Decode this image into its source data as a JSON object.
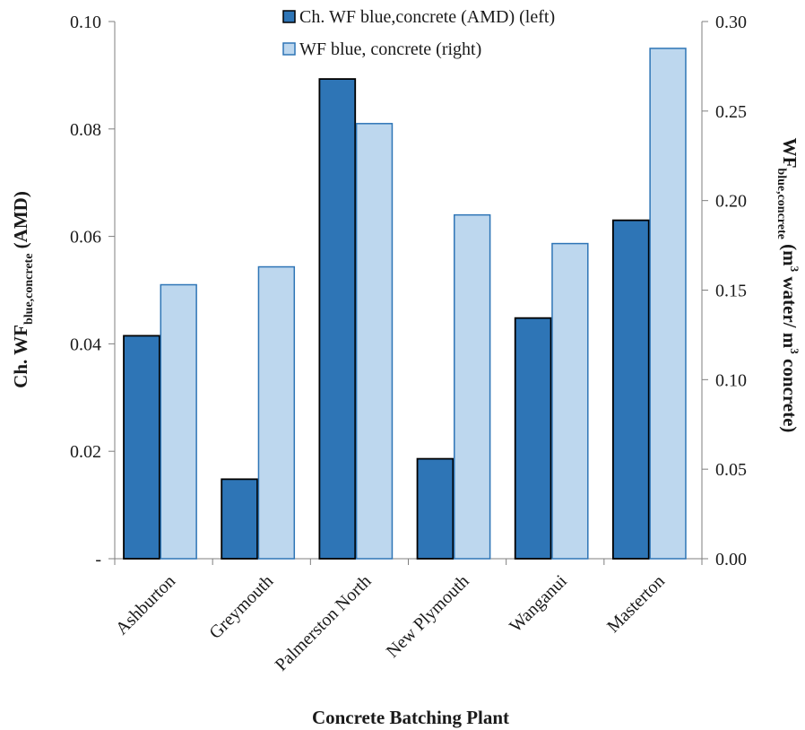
{
  "chart_data": {
    "type": "bar",
    "categories": [
      "Ashburton",
      "Greymouth",
      "Palmerston North",
      "New Plymouth",
      "Wanganui",
      "Masterton"
    ],
    "series": [
      {
        "name": "Ch. WF blue,concrete (AMD) (left)",
        "axis": "left",
        "color": "#2e75b6",
        "values": [
          0.0415,
          0.0148,
          0.0893,
          0.0186,
          0.0448,
          0.063
        ]
      },
      {
        "name": "WF blue, concrete (right)",
        "axis": "right",
        "color": "#bdd7ee",
        "values": [
          0.153,
          0.163,
          0.243,
          0.192,
          0.176,
          0.285
        ]
      }
    ],
    "left_axis": {
      "label_main": "Ch. WF",
      "label_sub": "blue,concrete",
      "label_tail": " (AMD)",
      "ylim": [
        0,
        0.1
      ],
      "ticks": [
        0,
        0.02,
        0.04,
        0.06,
        0.08,
        0.1
      ],
      "tick_labels": [
        "-",
        "0.02",
        "0.04",
        "0.06",
        "0.08",
        "0.10"
      ]
    },
    "right_axis": {
      "label_main": "WF",
      "label_sub": "blue,concrete",
      "label_tail_1": " (m",
      "label_sup_1": "3",
      "label_tail_2": " water/ m",
      "label_sup_2": "3",
      "label_tail_3": " concrete)",
      "ylim": [
        0,
        0.3
      ],
      "ticks": [
        0,
        0.05,
        0.1,
        0.15,
        0.2,
        0.25,
        0.3
      ],
      "tick_labels": [
        "0.00",
        "0.05",
        "0.10",
        "0.15",
        "0.20",
        "0.25",
        "0.30"
      ]
    },
    "xlabel": "Concrete Batching Plant",
    "grid": false,
    "legend_position": "top"
  }
}
